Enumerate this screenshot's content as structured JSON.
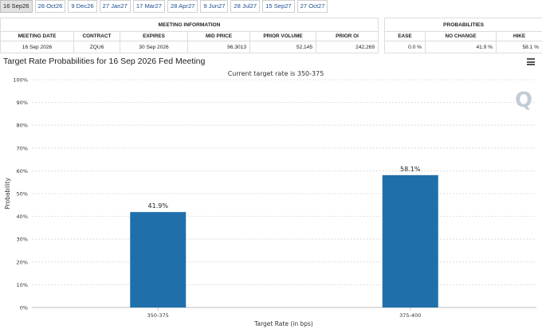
{
  "tabs": [
    "16 Sep26",
    "28 Oct26",
    "9 Dec26",
    "27 Jan27",
    "17 Mar27",
    "28 Apr27",
    "9 Jun27",
    "28 Jul27",
    "15 Sep27",
    "27 Oct27"
  ],
  "active_tab_index": 0,
  "meeting_info": {
    "group_label": "MEETING INFORMATION",
    "headers": [
      "MEETING DATE",
      "CONTRACT",
      "EXPIRES",
      "MID PRICE",
      "PRIOR VOLUME",
      "PRIOR OI"
    ],
    "row": [
      "16 Sep 2026",
      "ZQU6",
      "30 Sep 2026",
      "96.3013",
      "52,145",
      "242,269"
    ]
  },
  "probabilities": {
    "group_label": "PROBABILITIES",
    "headers": [
      "EASE",
      "NO CHANGE",
      "HIKE"
    ],
    "row": [
      "0.0 %",
      "41.9 %",
      "58.1 %"
    ]
  },
  "colors": {
    "bar": "#1f6fab",
    "active_tab": "#e2e2e2",
    "link": "#1d4f91"
  },
  "icons": {
    "menu": "hamburger-menu-icon",
    "watermark": "q-logo-watermark"
  },
  "chart_data": {
    "type": "bar",
    "title": "Target Rate Probabilities for 16 Sep 2026 Fed Meeting",
    "subtitle": "Current target rate is 350-375",
    "xlabel": "Target Rate (in bps)",
    "ylabel": "Probability",
    "categories": [
      "350-375",
      "375-400"
    ],
    "values": [
      41.9,
      58.1
    ],
    "data_labels": [
      "41.9%",
      "58.1%"
    ],
    "ylim": [
      0,
      100
    ],
    "yticks": [
      "0%",
      "10%",
      "20%",
      "30%",
      "40%",
      "50%",
      "60%",
      "70%",
      "80%",
      "90%",
      "100%"
    ],
    "grid": true,
    "watermark": "Q"
  }
}
